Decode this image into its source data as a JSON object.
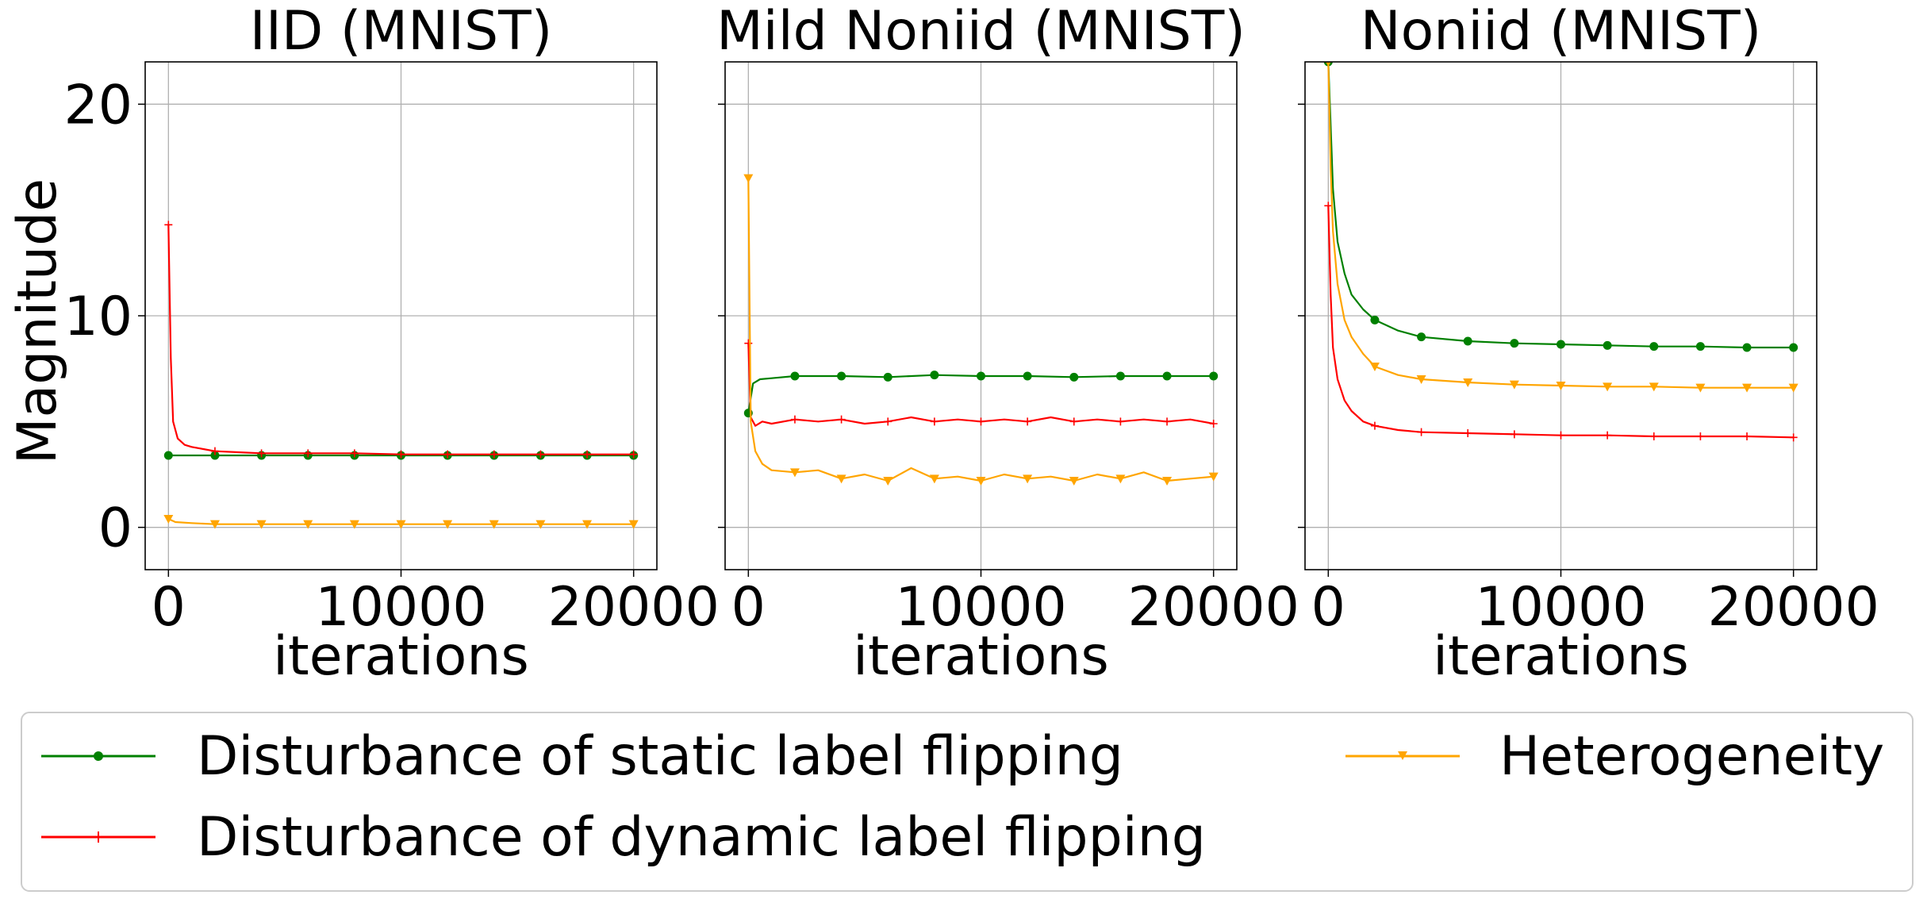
{
  "figure": {
    "ylabel": "Magnitude",
    "legend": {
      "placement": "bottom",
      "entries": [
        {
          "label": "Disturbance of static label flipping",
          "color": "#008000",
          "marker": "circle"
        },
        {
          "label": "Disturbance of dynamic label flipping",
          "color": "#ff0000",
          "marker": "plus"
        },
        {
          "label": "Heterogeneity",
          "color": "#ffa500",
          "marker": "triangle-down"
        }
      ]
    }
  },
  "chart_data": [
    {
      "type": "line",
      "title": "IID (MNIST)",
      "xlabel": "iterations",
      "ylabel": "Magnitude",
      "xlim": [
        -1000,
        21000
      ],
      "ylim": [
        -2,
        22
      ],
      "xticks": [
        0,
        10000,
        20000
      ],
      "yticks": [
        0,
        10,
        20
      ],
      "grid": true,
      "series": [
        {
          "name": "Disturbance of static label flipping",
          "color": "#008000",
          "marker": "circle",
          "x": [
            0,
            2000,
            4000,
            6000,
            8000,
            10000,
            12000,
            14000,
            16000,
            18000,
            20000
          ],
          "y": [
            3.4,
            3.4,
            3.4,
            3.4,
            3.4,
            3.4,
            3.4,
            3.4,
            3.4,
            3.4,
            3.4
          ]
        },
        {
          "name": "Disturbance of dynamic label flipping",
          "color": "#ff0000",
          "marker": "plus",
          "x": [
            0,
            100,
            200,
            400,
            700,
            1000,
            1500,
            2000,
            3000,
            4000,
            6000,
            8000,
            10000,
            12000,
            14000,
            16000,
            18000,
            20000
          ],
          "y": [
            14.3,
            8.0,
            5.0,
            4.2,
            3.9,
            3.8,
            3.7,
            3.6,
            3.55,
            3.5,
            3.5,
            3.5,
            3.45,
            3.45,
            3.45,
            3.45,
            3.45,
            3.45
          ]
        },
        {
          "name": "Heterogeneity",
          "color": "#ffa500",
          "marker": "triangle-down",
          "x": [
            0,
            300,
            1000,
            2000,
            4000,
            6000,
            8000,
            10000,
            12000,
            14000,
            16000,
            18000,
            20000
          ],
          "y": [
            0.4,
            0.25,
            0.2,
            0.15,
            0.15,
            0.15,
            0.15,
            0.15,
            0.15,
            0.15,
            0.15,
            0.15,
            0.15
          ]
        }
      ]
    },
    {
      "type": "line",
      "title": "Mild Noniid (MNIST)",
      "xlabel": "iterations",
      "xlim": [
        -1000,
        21000
      ],
      "ylim": [
        -2,
        22
      ],
      "xticks": [
        0,
        10000,
        20000
      ],
      "yticks": [
        0,
        10,
        20
      ],
      "grid": true,
      "series": [
        {
          "name": "Disturbance of static label flipping",
          "color": "#008000",
          "marker": "circle",
          "x": [
            0,
            200,
            500,
            1000,
            2000,
            4000,
            6000,
            8000,
            10000,
            12000,
            14000,
            16000,
            18000,
            20000
          ],
          "y": [
            5.4,
            6.8,
            7.0,
            7.05,
            7.15,
            7.15,
            7.1,
            7.2,
            7.15,
            7.15,
            7.1,
            7.15,
            7.15,
            7.15
          ]
        },
        {
          "name": "Disturbance of dynamic label flipping",
          "color": "#ff0000",
          "marker": "plus",
          "x": [
            0,
            100,
            300,
            600,
            1000,
            2000,
            3000,
            4000,
            5000,
            6000,
            7000,
            8000,
            9000,
            10000,
            11000,
            12000,
            13000,
            14000,
            15000,
            16000,
            17000,
            18000,
            19000,
            20000
          ],
          "y": [
            8.7,
            5.2,
            4.8,
            5.0,
            4.9,
            5.1,
            5.0,
            5.1,
            4.9,
            5.0,
            5.2,
            5.0,
            5.1,
            5.0,
            5.1,
            5.0,
            5.2,
            5.0,
            5.1,
            5.0,
            5.1,
            5.0,
            5.1,
            4.9
          ]
        },
        {
          "name": "Heterogeneity",
          "color": "#ffa500",
          "marker": "triangle-down",
          "x": [
            0,
            100,
            300,
            600,
            1000,
            2000,
            3000,
            4000,
            5000,
            6000,
            7000,
            8000,
            9000,
            10000,
            11000,
            12000,
            13000,
            14000,
            15000,
            16000,
            17000,
            18000,
            19000,
            20000
          ],
          "y": [
            16.5,
            5.0,
            3.6,
            3.0,
            2.7,
            2.6,
            2.7,
            2.3,
            2.5,
            2.2,
            2.8,
            2.3,
            2.4,
            2.2,
            2.5,
            2.3,
            2.4,
            2.2,
            2.5,
            2.3,
            2.6,
            2.2,
            2.3,
            2.4
          ]
        }
      ]
    },
    {
      "type": "line",
      "title": "Noniid (MNIST)",
      "xlabel": "iterations",
      "xlim": [
        -1000,
        21000
      ],
      "ylim": [
        -2,
        22
      ],
      "xticks": [
        0,
        10000,
        20000
      ],
      "yticks": [
        0,
        10,
        20
      ],
      "grid": true,
      "series": [
        {
          "name": "Disturbance of static label flipping",
          "color": "#008000",
          "marker": "circle",
          "x": [
            0,
            100,
            200,
            400,
            700,
            1000,
            1500,
            2000,
            3000,
            4000,
            6000,
            8000,
            10000,
            12000,
            14000,
            16000,
            18000,
            20000
          ],
          "y": [
            22.0,
            19.0,
            16.0,
            13.5,
            12.0,
            11.0,
            10.3,
            9.8,
            9.3,
            9.0,
            8.8,
            8.7,
            8.65,
            8.6,
            8.55,
            8.55,
            8.5,
            8.5
          ]
        },
        {
          "name": "Disturbance of dynamic label flipping",
          "color": "#ff0000",
          "marker": "plus",
          "x": [
            0,
            100,
            200,
            400,
            700,
            1000,
            1500,
            2000,
            3000,
            4000,
            6000,
            8000,
            10000,
            12000,
            14000,
            16000,
            18000,
            20000
          ],
          "y": [
            15.2,
            11.0,
            8.5,
            7.0,
            6.0,
            5.5,
            5.0,
            4.8,
            4.6,
            4.5,
            4.45,
            4.4,
            4.35,
            4.35,
            4.3,
            4.3,
            4.3,
            4.25
          ]
        },
        {
          "name": "Heterogeneity",
          "color": "#ffa500",
          "marker": "triangle-down",
          "x": [
            0,
            100,
            200,
            400,
            700,
            1000,
            1500,
            2000,
            3000,
            4000,
            6000,
            8000,
            10000,
            12000,
            14000,
            16000,
            18000,
            20000
          ],
          "y": [
            22.0,
            17.0,
            14.0,
            11.5,
            9.8,
            9.0,
            8.2,
            7.6,
            7.2,
            7.0,
            6.85,
            6.75,
            6.7,
            6.65,
            6.65,
            6.6,
            6.6,
            6.6
          ]
        }
      ]
    }
  ]
}
